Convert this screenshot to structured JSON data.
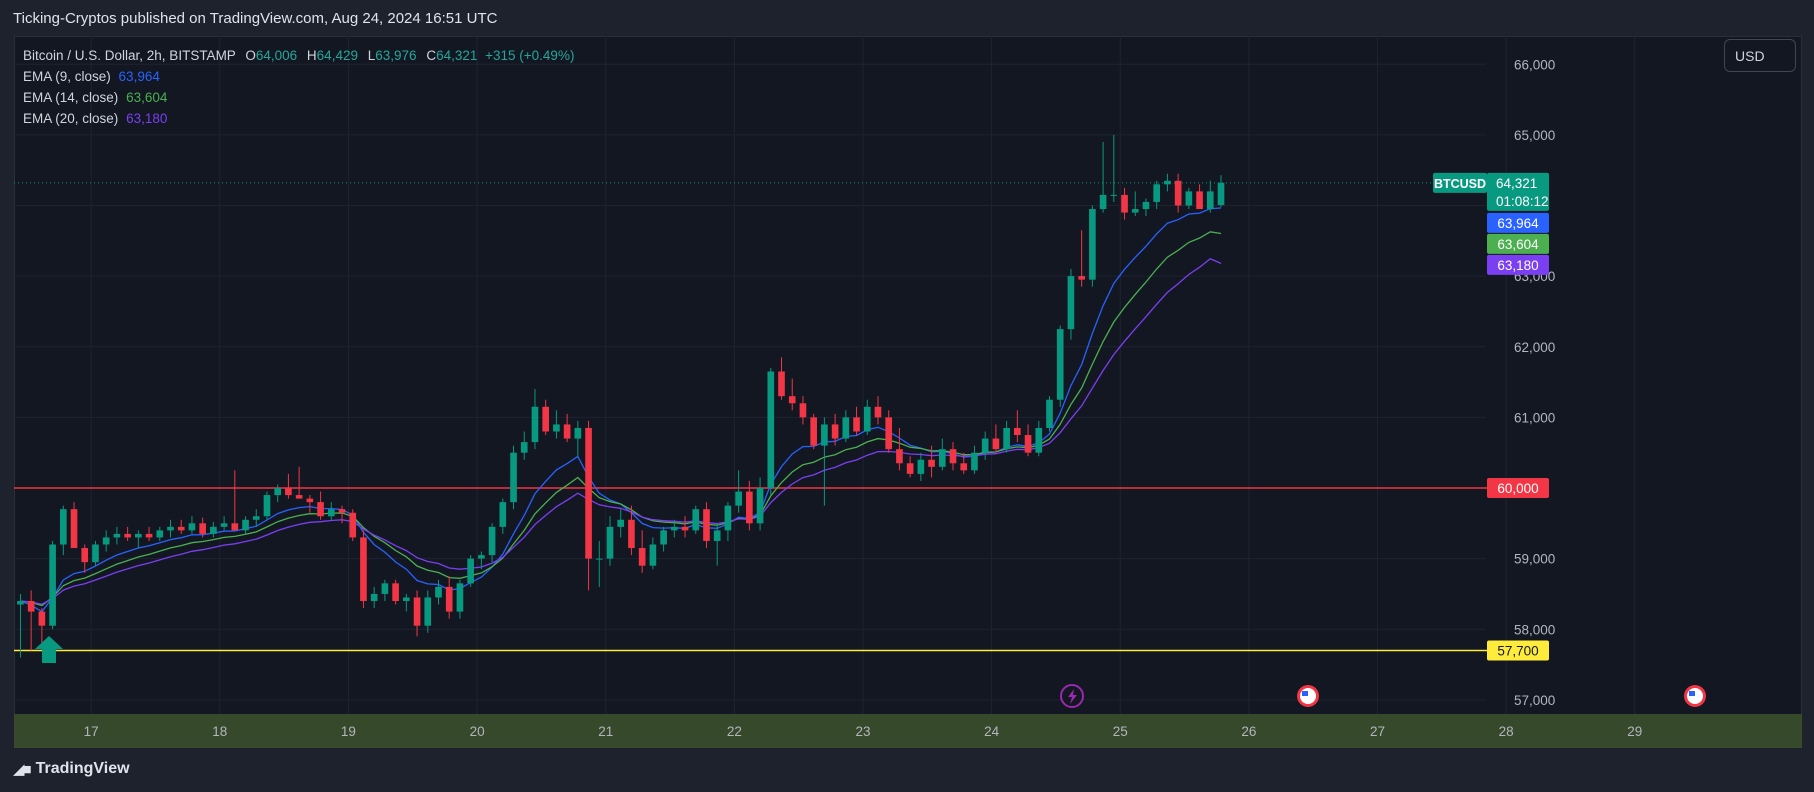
{
  "header": {
    "published_text": "Ticking-Cryptos published on TradingView.com, Aug 24, 2024 16:51 UTC"
  },
  "legend": {
    "symbol_line": "Bitcoin / U.S. Dollar, 2h, BITSTAMP",
    "o_label": "O",
    "o_value": "64,006",
    "h_label": "H",
    "h_value": "64,429",
    "l_label": "L",
    "l_value": "63,976",
    "c_label": "C",
    "c_value": "64,321",
    "change": "+315 (+0.49%)",
    "ema9_label": "EMA (9, close)",
    "ema9_value": "63,964",
    "ema14_label": "EMA (14, close)",
    "ema14_value": "63,604",
    "ema20_label": "EMA (20, close)",
    "ema20_value": "63,180"
  },
  "currency": "USD",
  "brand": "TradingView",
  "colors": {
    "up": "#089981",
    "down": "#f23645",
    "ema9": "#2962ff",
    "ema14": "#4caf50",
    "ema20": "#7b3ff2",
    "resistance": "#f23645",
    "support": "#ffeb3b",
    "grid": "#1f2330",
    "axis_text": "#b2b5be"
  },
  "chart_data": {
    "type": "candlestick",
    "symbol": "BTCUSD",
    "interval": "2h",
    "ylim": [
      56800,
      66400
    ],
    "y_ticks": [
      57000,
      58000,
      59000,
      60000,
      61000,
      62000,
      63000,
      64000,
      65000,
      66000
    ],
    "y_tick_labels": [
      "57,000",
      "58,000",
      "59,000",
      "",
      "61,000",
      "62,000",
      "63,000",
      "",
      "65,000",
      "66,000"
    ],
    "x_tick_labels": [
      "17",
      "18",
      "19",
      "20",
      "21",
      "22",
      "23",
      "24",
      "25",
      "26",
      "27",
      "28",
      "29"
    ],
    "x_start": 16.4,
    "x_end": 30.3,
    "horizontal_lines": [
      {
        "value": 60000,
        "label": "60,000",
        "color": "#f23645"
      },
      {
        "value": 57700,
        "label": "57,700",
        "color": "#ffeb3b"
      }
    ],
    "price_label": {
      "symbol": "BTCUSD",
      "value": "64,321",
      "countdown": "01:08:12"
    },
    "ema_labels": [
      {
        "value": "63,964",
        "color": "#2962ff"
      },
      {
        "value": "63,604",
        "color": "#4caf50"
      },
      {
        "value": "63,180",
        "color": "#7b3ff2"
      }
    ],
    "candles": [
      [
        58350,
        58500,
        57600,
        58400
      ],
      [
        58400,
        58550,
        57700,
        58250
      ],
      [
        58250,
        58300,
        57800,
        58050
      ],
      [
        58050,
        59250,
        58000,
        59200
      ],
      [
        59200,
        59750,
        59050,
        59700
      ],
      [
        59700,
        59800,
        59150,
        59150
      ],
      [
        59150,
        59200,
        58800,
        58950
      ],
      [
        58950,
        59250,
        58900,
        59200
      ],
      [
        59200,
        59400,
        59100,
        59300
      ],
      [
        59300,
        59450,
        59200,
        59350
      ],
      [
        59350,
        59450,
        59250,
        59300
      ],
      [
        59300,
        59400,
        59150,
        59350
      ],
      [
        59350,
        59450,
        59250,
        59300
      ],
      [
        59300,
        59450,
        59250,
        59400
      ],
      [
        59400,
        59550,
        59300,
        59450
      ],
      [
        59450,
        59550,
        59350,
        59400
      ],
      [
        59400,
        59600,
        59350,
        59500
      ],
      [
        59500,
        59580,
        59300,
        59350
      ],
      [
        59350,
        59520,
        59300,
        59450
      ],
      [
        59450,
        59600,
        59400,
        59500
      ],
      [
        59500,
        60250,
        59400,
        59400
      ],
      [
        59400,
        59600,
        59350,
        59550
      ],
      [
        59550,
        59700,
        59450,
        59600
      ],
      [
        59600,
        59950,
        59550,
        59900
      ],
      [
        59900,
        60050,
        59800,
        60000
      ],
      [
        60000,
        60200,
        59850,
        59900
      ],
      [
        59900,
        60300,
        59850,
        59850
      ],
      [
        59850,
        59900,
        59650,
        59800
      ],
      [
        59800,
        59950,
        59550,
        59600
      ],
      [
        59600,
        59800,
        59550,
        59700
      ],
      [
        59700,
        59750,
        59500,
        59650
      ],
      [
        59650,
        59700,
        59250,
        59300
      ],
      [
        59300,
        59400,
        58300,
        58400
      ],
      [
        58400,
        58600,
        58300,
        58500
      ],
      [
        58500,
        58700,
        58400,
        58650
      ],
      [
        58650,
        58700,
        58350,
        58400
      ],
      [
        58400,
        58500,
        58250,
        58450
      ],
      [
        58450,
        58550,
        57900,
        58050
      ],
      [
        58050,
        58550,
        57950,
        58450
      ],
      [
        58450,
        58700,
        58350,
        58600
      ],
      [
        58600,
        58750,
        58150,
        58250
      ],
      [
        58250,
        58700,
        58150,
        58650
      ],
      [
        58650,
        59050,
        58600,
        59000
      ],
      [
        59000,
        59100,
        58850,
        59050
      ],
      [
        59050,
        59500,
        58950,
        59450
      ],
      [
        59450,
        59850,
        59350,
        59800
      ],
      [
        59800,
        60600,
        59700,
        60500
      ],
      [
        60500,
        60800,
        60400,
        60650
      ],
      [
        60650,
        61400,
        60550,
        61150
      ],
      [
        61150,
        61250,
        60750,
        60800
      ],
      [
        60800,
        61100,
        60700,
        60900
      ],
      [
        60900,
        61050,
        60650,
        60700
      ],
      [
        60700,
        60950,
        60450,
        60850
      ],
      [
        60850,
        60950,
        58550,
        59000
      ],
      [
        59000,
        59250,
        58600,
        59000
      ],
      [
        59000,
        59600,
        58900,
        59450
      ],
      [
        59450,
        59700,
        59300,
        59550
      ],
      [
        59550,
        59750,
        59050,
        59150
      ],
      [
        59150,
        59400,
        58800,
        58900
      ],
      [
        58900,
        59300,
        58850,
        59200
      ],
      [
        59200,
        59450,
        59100,
        59400
      ],
      [
        59400,
        59550,
        59300,
        59450
      ],
      [
        59450,
        59600,
        59300,
        59400
      ],
      [
        59400,
        59750,
        59350,
        59700
      ],
      [
        59700,
        59800,
        59150,
        59250
      ],
      [
        59250,
        59500,
        58900,
        59400
      ],
      [
        59400,
        59800,
        59250,
        59750
      ],
      [
        59750,
        60250,
        59650,
        59950
      ],
      [
        59950,
        60100,
        59400,
        59500
      ],
      [
        59500,
        60150,
        59400,
        60000
      ],
      [
        60000,
        61700,
        59900,
        61650
      ],
      [
        61650,
        61850,
        61250,
        61300
      ],
      [
        61300,
        61550,
        61100,
        61200
      ],
      [
        61200,
        61300,
        60900,
        61000
      ],
      [
        61000,
        61050,
        60550,
        60600
      ],
      [
        60600,
        61000,
        59750,
        60900
      ],
      [
        60900,
        61050,
        60600,
        60700
      ],
      [
        60700,
        61100,
        60650,
        61000
      ],
      [
        61000,
        61150,
        60750,
        60800
      ],
      [
        60800,
        61250,
        60750,
        61150
      ],
      [
        61150,
        61300,
        60900,
        61000
      ],
      [
        61000,
        61100,
        60500,
        60550
      ],
      [
        60550,
        60850,
        60250,
        60350
      ],
      [
        60350,
        60450,
        60150,
        60200
      ],
      [
        60200,
        60500,
        60100,
        60400
      ],
      [
        60400,
        60600,
        60150,
        60300
      ],
      [
        60300,
        60700,
        60250,
        60550
      ],
      [
        60550,
        60650,
        60250,
        60350
      ],
      [
        60350,
        60500,
        60200,
        60250
      ],
      [
        60250,
        60600,
        60200,
        60500
      ],
      [
        60500,
        60800,
        60400,
        60700
      ],
      [
        60700,
        60900,
        60500,
        60550
      ],
      [
        60550,
        60950,
        60500,
        60850
      ],
      [
        60850,
        61100,
        60650,
        60750
      ],
      [
        60750,
        60900,
        60450,
        60500
      ],
      [
        60500,
        60950,
        60450,
        60850
      ],
      [
        60850,
        61300,
        60800,
        61250
      ],
      [
        61250,
        62300,
        61150,
        62250
      ],
      [
        62250,
        63100,
        62100,
        63000
      ],
      [
        63000,
        63650,
        62850,
        62950
      ],
      [
        62950,
        64000,
        62850,
        63950
      ],
      [
        63950,
        64900,
        63900,
        64150
      ],
      [
        64150,
        65000,
        64050,
        64150
      ],
      [
        64150,
        64250,
        63800,
        63900
      ],
      [
        63900,
        64200,
        63850,
        63950
      ],
      [
        63950,
        64100,
        63850,
        64050
      ],
      [
        64050,
        64350,
        63950,
        64300
      ],
      [
        64300,
        64450,
        64200,
        64350
      ],
      [
        64350,
        64450,
        63900,
        64000
      ],
      [
        64000,
        64250,
        63950,
        64200
      ],
      [
        64200,
        64300,
        63950,
        63950
      ],
      [
        63950,
        64350,
        63900,
        64200
      ],
      [
        64006,
        64429,
        63976,
        64321
      ]
    ],
    "series": [
      {
        "name": "EMA (9, close)",
        "color": "#2962ff",
        "values": [
          58400,
          58340,
          58250,
          58446,
          58697,
          58788,
          58820,
          58896,
          58977,
          59051,
          59101,
          59151,
          59181,
          59225,
          59270,
          59296,
          59337,
          59339,
          59361,
          59389,
          59391,
          59423,
          59459,
          59547,
          59637,
          59690,
          59722,
          59737,
          59710,
          59708,
          59696,
          59617,
          59373,
          59198,
          59089,
          58952,
          58850,
          58690,
          58642,
          58633,
          58556,
          58575,
          58660,
          58738,
          58880,
          59064,
          59351,
          59611,
          59919,
          60095,
          60256,
          60345,
          60446,
          60157,
          59925,
          59830,
          59774,
          59649,
          59499,
          59440,
          59432,
          59436,
          59429,
          59483,
          59437,
          59430,
          59494,
          59585,
          59568,
          59654,
          60054,
          60303,
          60482,
          60586,
          60589,
          60651,
          60661,
          60729,
          60743,
          60824,
          60859,
          60797,
          60708,
          60606,
          60565,
          60512,
          60519,
          60485,
          60438,
          60450,
          60500,
          60510,
          60578,
          60612,
          60590,
          60642,
          60764,
          61061,
          61449,
          61749,
          62189,
          62581,
          62895,
          63096,
          63267,
          63424,
          63599,
          63749,
          63799,
          63879,
          63893,
          63954,
          63964
        ]
      },
      {
        "name": "EMA (14, close)",
        "color": "#4caf50",
        "values": [
          58400,
          58380,
          58336,
          58452,
          58618,
          58689,
          58724,
          58788,
          58856,
          58922,
          58972,
          59023,
          59060,
          59106,
          59152,
          59184,
          59226,
          59242,
          59270,
          59301,
          59314,
          59345,
          59379,
          59449,
          59523,
          59574,
          59611,
          59636,
          59632,
          59645,
          59646,
          59600,
          59440,
          59314,
          59225,
          59115,
          59026,
          58896,
          58836,
          58804,
          58731,
          58721,
          58759,
          58798,
          58885,
          59007,
          59207,
          59400,
          59634,
          59790,
          59938,
          60040,
          60148,
          59995,
          59863,
          59808,
          59774,
          59691,
          59586,
          59535,
          59517,
          59508,
          59493,
          59520,
          59484,
          59473,
          59510,
          59569,
          59560,
          59619,
          59890,
          60078,
          60227,
          60330,
          60366,
          60437,
          60472,
          60542,
          60577,
          60653,
          60699,
          60679,
          60635,
          60577,
          60559,
          60525,
          60529,
          60506,
          60472,
          60475,
          60505,
          60511,
          60556,
          60582,
          60571,
          60608,
          60694,
          60902,
          61182,
          61418,
          61755,
          62074,
          62351,
          62557,
          62742,
          62917,
          63102,
          63268,
          63366,
          63477,
          63540,
          63627,
          63604
        ]
      },
      {
        "name": "EMA (20, close)",
        "color": "#7b3ff2",
        "values": [
          58400,
          58386,
          58354,
          58434,
          58555,
          58611,
          58644,
          58697,
          58753,
          58809,
          58855,
          58901,
          58938,
          58982,
          59027,
          59062,
          59104,
          59127,
          59158,
          59191,
          59210,
          59242,
          59276,
          59335,
          59398,
          59446,
          59485,
          59515,
          59523,
          59540,
          59550,
          59525,
          59418,
          59331,
          59265,
          59183,
          59114,
          59013,
          58960,
          58931,
          58867,
          58850,
          58864,
          58882,
          58936,
          59019,
          59160,
          59304,
          59484,
          59612,
          59735,
          59827,
          59927,
          59839,
          59762,
          59732,
          59713,
          59660,
          59588,
          59551,
          59537,
          59528,
          59517,
          59536,
          59509,
          59498,
          59522,
          59562,
          59556,
          59600,
          59793,
          59937,
          60057,
          60147,
          60186,
          60250,
          60292,
          60357,
          60397,
          60464,
          60515,
          60517,
          60504,
          60482,
          60474,
          60458,
          60467,
          60460,
          60450,
          60455,
          60478,
          60486,
          60522,
          60546,
          60542,
          60572,
          60634,
          60783,
          60980,
          61164,
          61415,
          61664,
          61890,
          62077,
          62255,
          62425,
          62603,
          62769,
          62893,
          63023,
          63126,
          63246,
          63180
        ]
      }
    ]
  }
}
